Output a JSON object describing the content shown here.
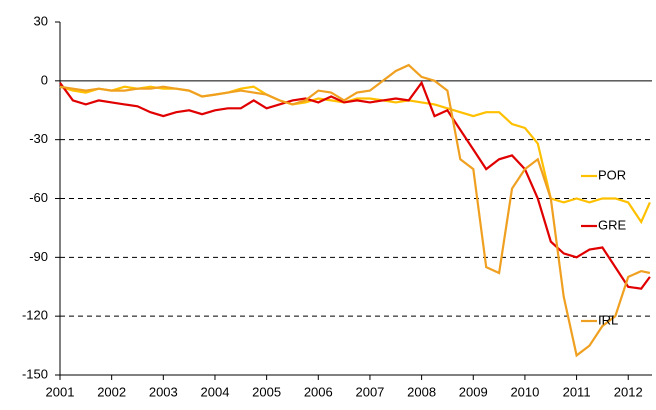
{
  "chart_data": {
    "type": "line",
    "x": [
      2001,
      2001.25,
      2001.5,
      2001.75,
      2002,
      2002.25,
      2002.5,
      2002.75,
      2003,
      2003.25,
      2003.5,
      2003.75,
      2004,
      2004.25,
      2004.5,
      2004.75,
      2005,
      2005.25,
      2005.5,
      2005.75,
      2006,
      2006.25,
      2006.5,
      2006.75,
      2007,
      2007.25,
      2007.5,
      2007.75,
      2008,
      2008.25,
      2008.5,
      2008.75,
      2009,
      2009.25,
      2009.5,
      2009.75,
      2010,
      2010.25,
      2010.5,
      2010.75,
      2011,
      2011.25,
      2011.5,
      2011.75,
      2012,
      2012.25,
      2012.42
    ],
    "series": [
      {
        "name": "POR",
        "color": "#ffc000",
        "values": [
          -3,
          -5,
          -6,
          -4,
          -5,
          -3,
          -4,
          -3,
          -4,
          -4,
          -5,
          -8,
          -7,
          -6,
          -4,
          -3,
          -7,
          -10,
          -12,
          -11,
          -9,
          -10,
          -11,
          -9,
          -9,
          -10,
          -11,
          -10,
          -11,
          -12,
          -14,
          -16,
          -18,
          -16,
          -16,
          -22,
          -24,
          -32,
          -60,
          -62,
          -60,
          -62,
          -60,
          -60,
          -62,
          -72,
          -62
        ]
      },
      {
        "name": "GRE",
        "color": "#e00000",
        "values": [
          -1,
          -10,
          -12,
          -10,
          -11,
          -12,
          -13,
          -16,
          -18,
          -16,
          -15,
          -17,
          -15,
          -14,
          -14,
          -10,
          -14,
          -12,
          -10,
          -9,
          -11,
          -8,
          -11,
          -10,
          -11,
          -10,
          -9,
          -10,
          -1,
          -18,
          -15,
          -25,
          -35,
          -45,
          -40,
          -38,
          -45,
          -60,
          -82,
          -88,
          -90,
          -86,
          -85,
          -95,
          -105,
          -106,
          -100
        ]
      },
      {
        "name": "IRL",
        "color": "#f0a020",
        "values": [
          -3,
          -4,
          -5,
          -4,
          -5,
          -5,
          -4,
          -4,
          -3,
          -4,
          -5,
          -8,
          -7,
          -6,
          -5,
          -6,
          -7,
          -10,
          -12,
          -10,
          -5,
          -6,
          -10,
          -6,
          -5,
          0,
          5,
          8,
          2,
          0,
          -5,
          -40,
          -45,
          -95,
          -98,
          -55,
          -45,
          -40,
          -60,
          -110,
          -140,
          -135,
          -125,
          -120,
          -100,
          -97,
          -98
        ]
      }
    ],
    "xlim": [
      2001,
      2012.46
    ],
    "xticks": [
      2001,
      2002,
      2003,
      2004,
      2005,
      2006,
      2007,
      2008,
      2009,
      2010,
      2011,
      2012
    ],
    "ylim": [
      -150,
      30
    ],
    "yticks": [
      -150,
      -120,
      -90,
      -60,
      -30,
      0,
      30
    ],
    "grid": true
  }
}
